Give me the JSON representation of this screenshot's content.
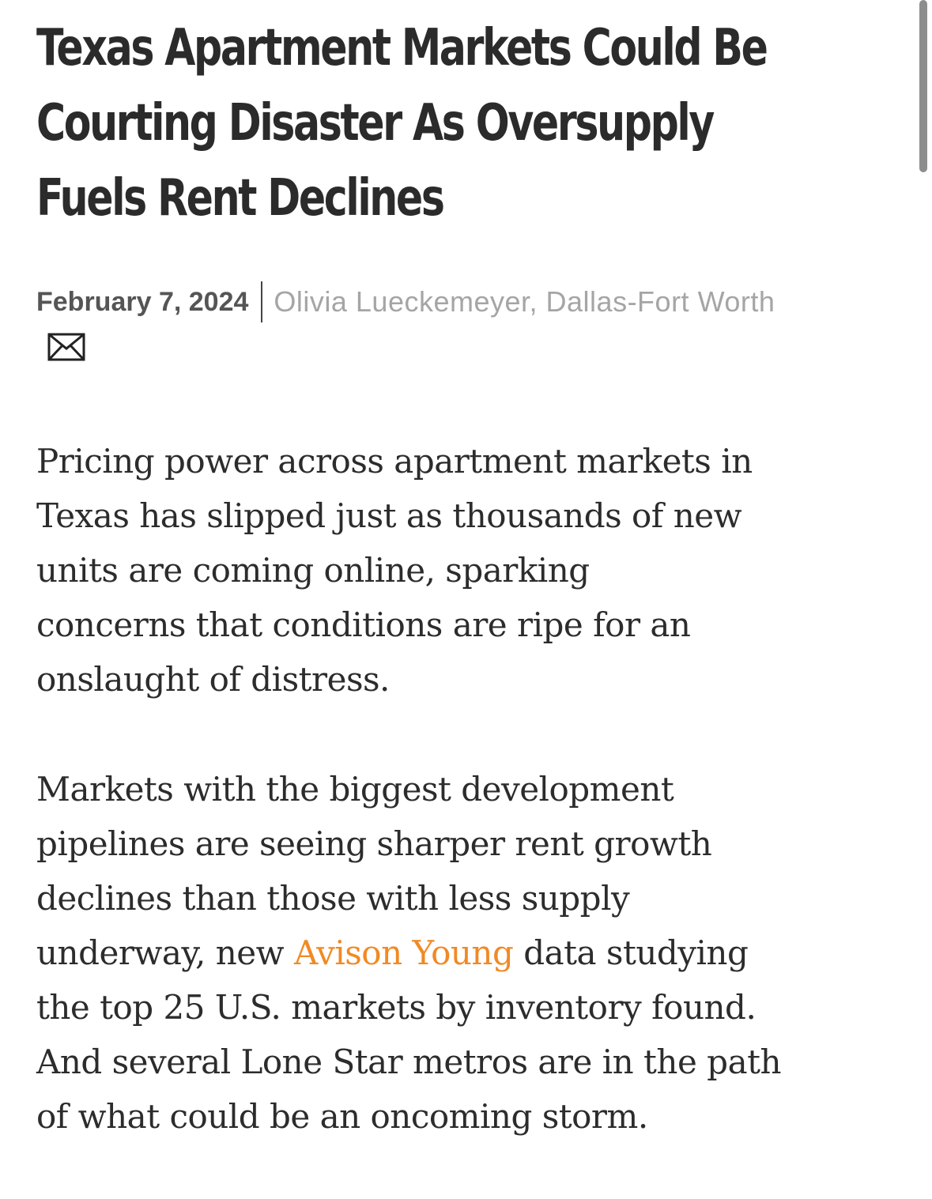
{
  "article": {
    "headline_lines": [
      "Texas Apartment Markets Could Be",
      "Courting Disaster As Oversupply",
      "Fuels Rent Declines"
    ],
    "date": "February 7, 2024",
    "author": "Olivia Lueckemeyer, Dallas-Fort Worth",
    "email_icon": "envelope-icon",
    "paragraph1_lines": [
      "Pricing power across apartment markets in",
      "Texas has slipped just as thousands of new",
      "units are coming online, sparking",
      "concerns that conditions are ripe for an",
      "onslaught of distress."
    ],
    "paragraph2": {
      "line1": "Markets with the biggest development",
      "line2": "pipelines are seeing sharper rent growth",
      "line3": "declines than those with less supply",
      "line4_before": "underway, new ",
      "link_text": "Avison Young",
      "line4_after": " data studying",
      "line5": "the top 25 U.S. markets by inventory found.",
      "line6": "And several Lone Star metros are in the path",
      "line7": "of what could be an oncoming storm."
    }
  },
  "colors": {
    "headline": "#2b2b2b",
    "link": "#f08a24",
    "author": "#a5a5a5"
  }
}
